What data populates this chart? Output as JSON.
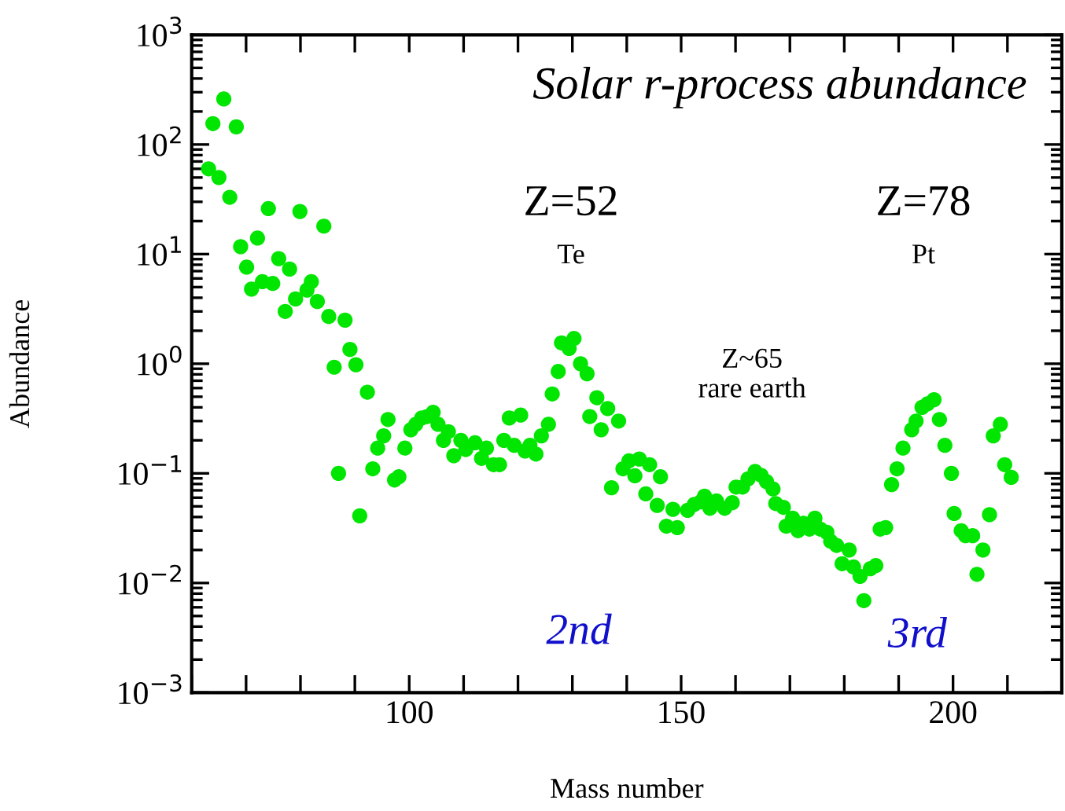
{
  "chart_data": {
    "type": "scatter",
    "title": "Solar r-process abundance",
    "xlabel": "Mass number",
    "ylabel": "Abundance",
    "x": [
      63.1,
      63.9,
      65,
      65.9,
      67,
      68.2,
      69,
      70.1,
      71,
      72.1,
      73,
      74.1,
      74.9,
      76,
      77.2,
      78,
      79.1,
      79.9,
      81.2,
      82,
      83.1,
      84.3,
      85.2,
      86.2,
      87.0,
      88.2,
      89.1,
      90.2,
      90.9,
      92.3,
      93.3,
      94.2,
      95.3,
      96.1,
      97.3,
      98.1,
      99.2,
      100.3,
      101.2,
      102.3,
      103.3,
      104.4,
      105.3,
      106.3,
      107.2,
      108.2,
      109.5,
      110.4,
      112.1,
      113.3,
      114.2,
      115.5,
      116.6,
      117.4,
      118.4,
      119.3,
      120.5,
      121.3,
      122.2,
      123.3,
      124.3,
      125.6,
      126.3,
      127.4,
      128.0,
      129.4,
      130.3,
      131.5,
      132.7,
      133.2,
      134.5,
      135.3,
      136.5,
      137.2,
      138.5,
      139.3,
      140.4,
      141.5,
      142.3,
      143.5,
      144.2,
      145.6,
      146.2,
      147.3,
      148.5,
      149.3,
      151.2,
      152.4,
      153.6,
      154.3,
      155.3,
      156.5,
      158.0,
      159.4,
      160.1,
      161.3,
      162.3,
      163.6,
      164.7,
      165.7,
      166.9,
      167.4,
      168.8,
      169.3,
      170.5,
      171.5,
      172.5,
      173.6,
      174.6,
      175.6,
      176.8,
      177.5,
      178.6,
      179.6,
      180.9,
      181.7,
      182.9,
      183.6,
      184.8,
      185.8,
      186.6,
      187.6,
      188.7,
      189.7,
      190.8,
      192.4,
      193.2,
      194.3,
      195.3,
      196.5,
      197.5,
      198.5,
      199.7,
      200.2,
      201.5,
      202.3,
      203.6,
      204.4,
      205.5,
      206.7,
      207.4,
      208.7,
      209.5,
      210.7
    ],
    "series": [
      {
        "color": "#00e600",
        "values": [
          60,
          155,
          50,
          260,
          33,
          145,
          11.7,
          7.6,
          4.8,
          14,
          5.6,
          26,
          5.4,
          9.1,
          3.0,
          7.3,
          3.9,
          24.5,
          4.7,
          5.6,
          3.7,
          18,
          2.7,
          0.93,
          0.1,
          2.5,
          1.35,
          0.98,
          0.041,
          0.55,
          0.11,
          0.17,
          0.22,
          0.31,
          0.087,
          0.093,
          0.17,
          0.25,
          0.28,
          0.32,
          0.33,
          0.36,
          0.28,
          0.2,
          0.24,
          0.145,
          0.2,
          0.165,
          0.19,
          0.137,
          0.17,
          0.12,
          0.12,
          0.2,
          0.32,
          0.18,
          0.34,
          0.16,
          0.18,
          0.15,
          0.22,
          0.28,
          0.53,
          0.85,
          1.55,
          1.38,
          1.7,
          1.0,
          0.81,
          0.33,
          0.49,
          0.25,
          0.39,
          0.074,
          0.3,
          0.11,
          0.13,
          0.095,
          0.135,
          0.065,
          0.12,
          0.051,
          0.093,
          0.033,
          0.047,
          0.032,
          0.046,
          0.052,
          0.055,
          0.062,
          0.048,
          0.056,
          0.048,
          0.054,
          0.075,
          0.075,
          0.089,
          0.104,
          0.096,
          0.084,
          0.072,
          0.053,
          0.049,
          0.033,
          0.039,
          0.03,
          0.035,
          0.031,
          0.039,
          0.031,
          0.029,
          0.024,
          0.022,
          0.015,
          0.02,
          0.014,
          0.0115,
          0.0069,
          0.0135,
          0.0144,
          0.031,
          0.032,
          0.079,
          0.11,
          0.17,
          0.25,
          0.3,
          0.4,
          0.43,
          0.47,
          0.31,
          0.18,
          0.1,
          0.043,
          0.03,
          0.027,
          0.027,
          0.012,
          0.02,
          0.042,
          0.22,
          0.28,
          0.12,
          0.092
        ]
      }
    ],
    "marker": "circle",
    "log": "y",
    "xlim": [
      60,
      220
    ],
    "xticks": [
      {
        "value": 60,
        "label": null
      },
      {
        "value": 70,
        "label": null
      },
      {
        "value": 80,
        "label": null
      },
      {
        "value": 90,
        "label": null
      },
      100,
      {
        "value": 110,
        "label": null
      },
      {
        "value": 120,
        "label": null
      },
      {
        "value": 130,
        "label": null
      },
      {
        "value": 140,
        "label": null
      },
      150,
      {
        "value": 160,
        "label": null
      },
      {
        "value": 170,
        "label": null
      },
      {
        "value": 180,
        "label": null
      },
      {
        "value": 190,
        "label": null
      },
      200,
      {
        "value": 210,
        "label": null
      },
      {
        "value": 220,
        "label": null
      }
    ],
    "ylim": [
      0.001,
      1000
    ],
    "yticks": [
      {
        "value": 0.001,
        "label": "10$^{−3}$"
      },
      {
        "value": 0.01,
        "label": "10$^{−2}$"
      },
      {
        "value": 0.1,
        "label": "10$^{−1}$"
      },
      {
        "value": 1,
        "label": "10$^{0}$"
      },
      {
        "value": 10,
        "label": "10$^{1}$"
      },
      {
        "value": 100,
        "label": "10$^{2}$"
      },
      {
        "value": 1000,
        "label": "10$^{3}$"
      }
    ],
    "grid": false,
    "legend": false,
    "annotations": [
      "Z=52",
      "Te",
      "Z=78",
      "Pt",
      "Z~65\nrare earth",
      "2nd",
      "3rd"
    ]
  }
}
